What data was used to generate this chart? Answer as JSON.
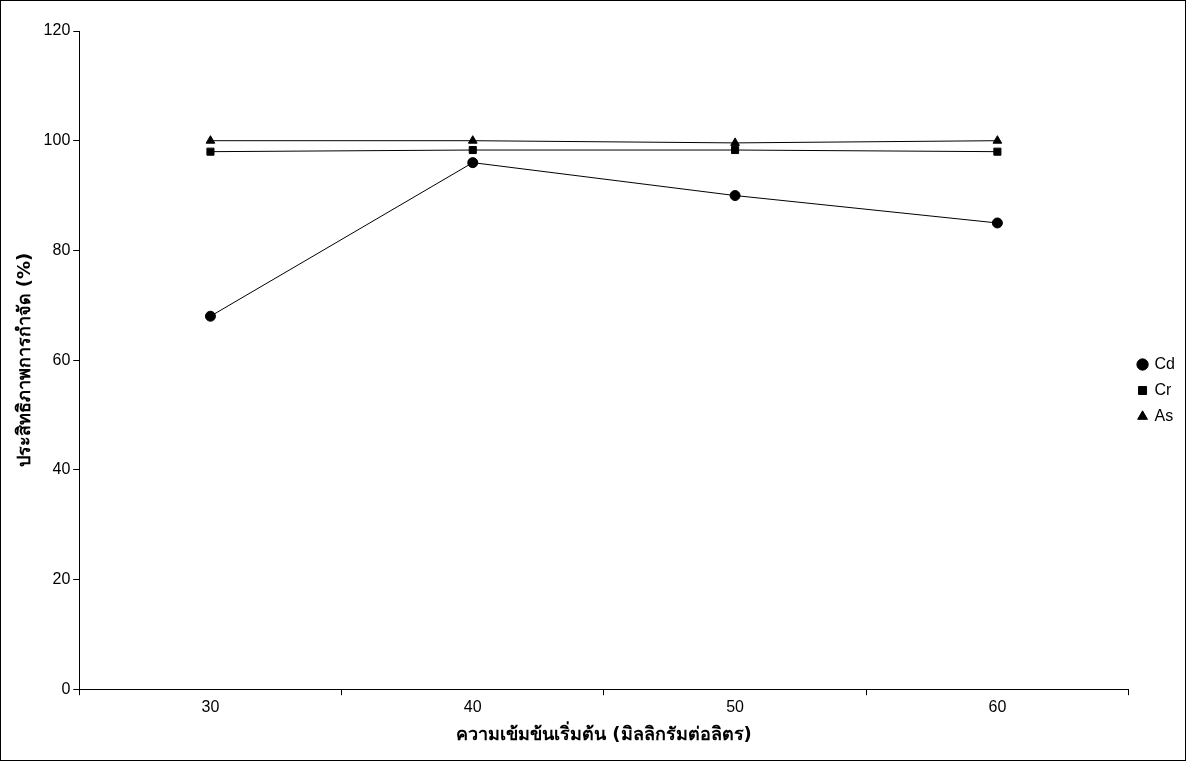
{
  "chart_data": {
    "type": "line",
    "xlabel": "ความเข้มข้นเริ่มต้น (มิลลิกรัมต่อลิตร)",
    "ylabel": "ประสิทธิภาพการกำจัด (%)",
    "categories": [
      "30",
      "40",
      "50",
      "60"
    ],
    "series": [
      {
        "name": "Cd",
        "color": "#000000",
        "marker": "circle",
        "values": [
          68,
          96,
          90,
          85
        ]
      },
      {
        "name": "Cr",
        "color": "#000000",
        "marker": "square",
        "values": [
          98,
          98.3,
          98.3,
          98
        ]
      },
      {
        "name": "As",
        "color": "#000000",
        "marker": "triangle",
        "values": [
          100,
          100,
          99.6,
          100
        ]
      }
    ],
    "ylim": [
      0,
      120
    ],
    "yticks": [
      0,
      20,
      40,
      60,
      80,
      100,
      120
    ],
    "legend": "right"
  }
}
